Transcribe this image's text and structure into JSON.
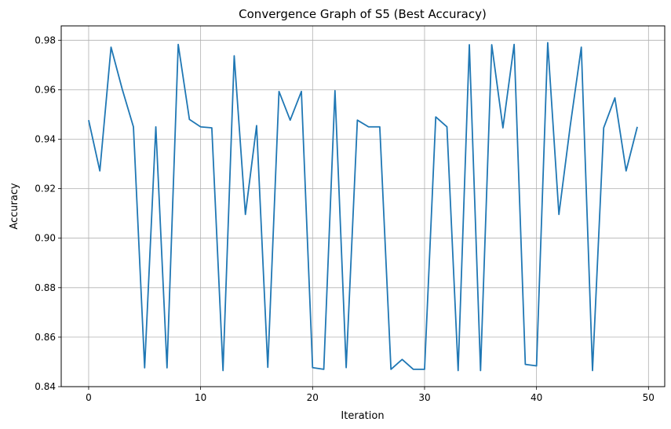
{
  "chart_data": {
    "type": "line",
    "title": "Convergence Graph of S5 (Best Accuracy)",
    "xlabel": "Iteration",
    "ylabel": "Accuracy",
    "xlim": [
      -2.45,
      51.45
    ],
    "ylim": [
      0.84,
      0.9858
    ],
    "grid": true,
    "xticks": [
      "0",
      "10",
      "20",
      "30",
      "40",
      "50"
    ],
    "yticks": [
      "0.84",
      "0.86",
      "0.88",
      "0.90",
      "0.92",
      "0.94",
      "0.96",
      "0.98"
    ],
    "colors": {
      "line": "#1f77b4",
      "grid": "#b0b0b0"
    },
    "series": [
      {
        "x": [
          0,
          1,
          2,
          3,
          4,
          5,
          6,
          7,
          8,
          9,
          10,
          11,
          12,
          13,
          14,
          15,
          16,
          17,
          18,
          19,
          20,
          21,
          22,
          23,
          24,
          25,
          26,
          27,
          28,
          29,
          30,
          31,
          32,
          33,
          34,
          35,
          36,
          37,
          38,
          39,
          40,
          41,
          42,
          43,
          44,
          45,
          46,
          47,
          48,
          49
        ],
        "values": [
          0.9477,
          0.9272,
          0.9772,
          0.9602,
          0.945,
          0.8476,
          0.945,
          0.8476,
          0.9783,
          0.948,
          0.945,
          0.9446,
          0.8465,
          0.9737,
          0.9096,
          0.9455,
          0.8478,
          0.9593,
          0.9477,
          0.9593,
          0.8477,
          0.847,
          0.9596,
          0.8477,
          0.9477,
          0.945,
          0.945,
          0.847,
          0.851,
          0.847,
          0.847,
          0.949,
          0.945,
          0.8465,
          0.9782,
          0.8465,
          0.9782,
          0.9446,
          0.9783,
          0.849,
          0.8484,
          0.979,
          0.9096,
          0.945,
          0.9772,
          0.8465,
          0.9446,
          0.9567,
          0.9272,
          0.945
        ]
      }
    ]
  }
}
